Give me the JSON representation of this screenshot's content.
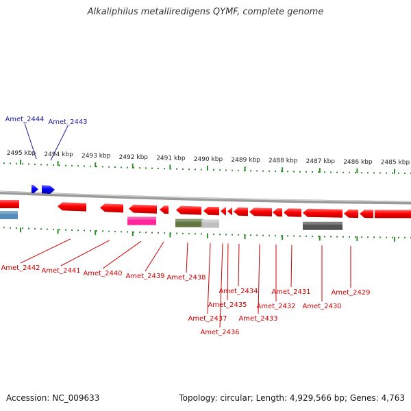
{
  "title": "Alkaliphilus metalliredigens QYMF, complete genome",
  "footer": {
    "accession": "Accession: NC_009633",
    "topology": "Topology: circular; Length: 4,929,566 bp; Genes: 4,763"
  },
  "colors": {
    "forward_gene": "#1a1aee",
    "reverse_gene": "#ee0000",
    "backbone": "#808080",
    "ticks": "#2e8b2e",
    "forward_label": "#1a1a99",
    "reverse_label": "#cc0000"
  },
  "scale_ticks": [
    "2495 kbp",
    "2494 kbp",
    "2493 kbp",
    "2492 kbp",
    "2491 kbp",
    "2490 kbp",
    "2489 kbp",
    "2488 kbp",
    "2487 kbp",
    "2486 kbp",
    "2485 kbp"
  ],
  "forward_genes": [
    "Amet_2444",
    "Amet_2443"
  ],
  "reverse_genes": [
    "Amet_2442",
    "Amet_2441",
    "Amet_2440",
    "Amet_2439",
    "Amet_2438",
    "Amet_2437",
    "Amet_2436",
    "Amet_2435",
    "Amet_2434",
    "Amet_2433",
    "Amet_2432",
    "Amet_2431",
    "Amet_2430",
    "Amet_2429"
  ],
  "feature_tracks": [
    {
      "color": "#4682b4"
    },
    {
      "color": "#ff1493"
    },
    {
      "color": "#556b2f"
    },
    {
      "color": "#bbbbbb"
    },
    {
      "color": "#444444"
    }
  ]
}
